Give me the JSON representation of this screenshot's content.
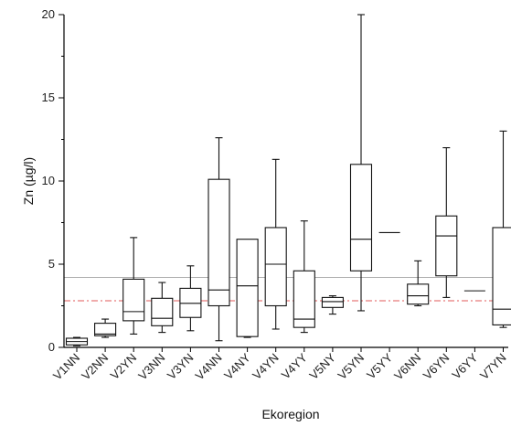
{
  "chart_data": {
    "type": "box",
    "xlabel": "Ekoregion",
    "ylabel": "Zn (µg/l)",
    "ylim": [
      0,
      20
    ],
    "yticks": [
      0,
      5,
      10,
      15,
      20
    ],
    "categories": [
      "V1NN",
      "V2NN",
      "V2YN",
      "V3NN",
      "V3YN",
      "V4NN",
      "V4NY",
      "V4YN",
      "V4YY",
      "V5NY",
      "V5YN",
      "V5YY",
      "V6NN",
      "V6YN",
      "V6YY",
      "V7YN"
    ],
    "boxes": [
      {
        "category": "V1NN",
        "min": 0.1,
        "q1": 0.15,
        "median": 0.35,
        "q3": 0.55,
        "max": 0.6
      },
      {
        "category": "V2NN",
        "min": 0.6,
        "q1": 0.7,
        "median": 0.8,
        "q3": 1.45,
        "max": 1.7
      },
      {
        "category": "V2YN",
        "min": 0.8,
        "q1": 1.6,
        "median": 2.15,
        "q3": 4.1,
        "max": 6.6
      },
      {
        "category": "V3NN",
        "min": 0.9,
        "q1": 1.3,
        "median": 1.75,
        "q3": 2.95,
        "max": 3.9
      },
      {
        "category": "V3YN",
        "min": 1.0,
        "q1": 1.8,
        "median": 2.65,
        "q3": 3.55,
        "max": 4.9
      },
      {
        "category": "V4NN",
        "min": 0.4,
        "q1": 2.5,
        "median": 3.45,
        "q3": 10.1,
        "max": 12.6
      },
      {
        "category": "V4NY",
        "min": 0.6,
        "q1": 0.65,
        "median": 3.7,
        "q3": 6.5,
        "max": 6.5
      },
      {
        "category": "V4YN",
        "min": 1.1,
        "q1": 2.5,
        "median": 5.0,
        "q3": 7.2,
        "max": 11.3
      },
      {
        "category": "V4YY",
        "min": 0.9,
        "q1": 1.2,
        "median": 1.7,
        "q3": 4.6,
        "max": 7.6
      },
      {
        "category": "V5NY",
        "min": 2.0,
        "q1": 2.4,
        "median": 2.75,
        "q3": 3.0,
        "max": 3.1
      },
      {
        "category": "V5YN",
        "min": 2.2,
        "q1": 4.6,
        "median": 6.5,
        "q3": 11.0,
        "max": 20.0
      },
      {
        "category": "V5YY",
        "min": 6.9,
        "q1": 6.9,
        "median": 6.9,
        "q3": 6.9,
        "max": 6.9
      },
      {
        "category": "V6NN",
        "min": 2.5,
        "q1": 2.6,
        "median": 3.1,
        "q3": 3.8,
        "max": 5.2
      },
      {
        "category": "V6YN",
        "min": 3.0,
        "q1": 4.3,
        "median": 6.7,
        "q3": 7.9,
        "max": 12.0
      },
      {
        "category": "V6YY",
        "min": 3.4,
        "q1": 3.4,
        "median": 3.4,
        "q3": 3.4,
        "max": 3.4
      },
      {
        "category": "V7YN",
        "min": 1.2,
        "q1": 1.35,
        "median": 2.3,
        "q3": 7.2,
        "max": 13.0
      }
    ],
    "reference_lines": [
      {
        "value": 4.2,
        "style": "solid",
        "color": "#b0b0b0"
      },
      {
        "value": 2.8,
        "style": "dash-dot",
        "color": "#e05a5a"
      }
    ],
    "grid": false
  }
}
